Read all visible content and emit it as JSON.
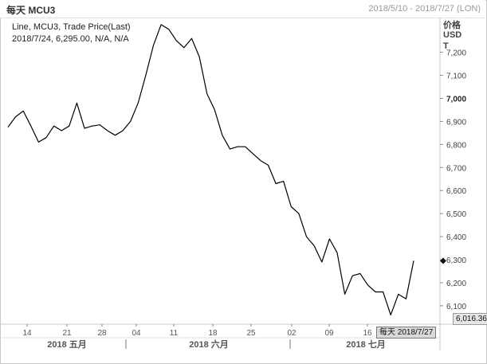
{
  "header": {
    "title": "每天 MCU3",
    "date_range": "2018/5/10 - 2018/7/27 (LON)"
  },
  "legend": {
    "line1": "Line, MCU3, Trade Price(Last)",
    "line2": "2018/7/24, 6,295.00, N/A, N/A"
  },
  "y_unit": [
    "价格",
    "USD",
    "T"
  ],
  "last_value_label": "6,016.36",
  "cursor_label": "每天 2018/7/27",
  "colors": {
    "line": "#000000",
    "grid": "#c8c8c8",
    "frame": "#c8c8c8"
  },
  "chart_data": {
    "type": "line",
    "title": "",
    "series": [
      {
        "values": [
          6875,
          6920,
          6945,
          6880,
          6810,
          6830,
          6880,
          6860,
          6880,
          6980,
          6870,
          6880,
          6885,
          6860,
          6840,
          6860,
          6900,
          6980,
          7100,
          7230,
          7320,
          7300,
          7250,
          7220,
          7260,
          7180,
          7020,
          6950,
          6840,
          6780,
          6790,
          6790,
          6760,
          6730,
          6710,
          6630,
          6640,
          6530,
          6500,
          6400,
          6360,
          6290,
          6390,
          6330,
          6150,
          6230,
          6240,
          6190,
          6160,
          6160,
          6060,
          6150,
          6130,
          6295
        ]
      }
    ],
    "x_tick_labels": [
      "14",
      "21",
      "28",
      "04",
      "11",
      "18",
      "25",
      "02",
      "09",
      "16"
    ],
    "month_labels": [
      "2018 五月",
      "2018 六月",
      "2018 七月"
    ],
    "y_ticks": [
      6100,
      6200,
      6300,
      6400,
      6500,
      6600,
      6700,
      6800,
      6900,
      7000,
      7100,
      7200
    ],
    "y_tick_labels": [
      "6,100",
      "6,200",
      "6,300",
      "6,400",
      "6,500",
      "6,600",
      "6,700",
      "6,800",
      "6,900",
      "7,000",
      "7,100",
      "7,200"
    ],
    "ylim": [
      6020,
      7330
    ],
    "grid": false,
    "legend_position": "top-left"
  }
}
